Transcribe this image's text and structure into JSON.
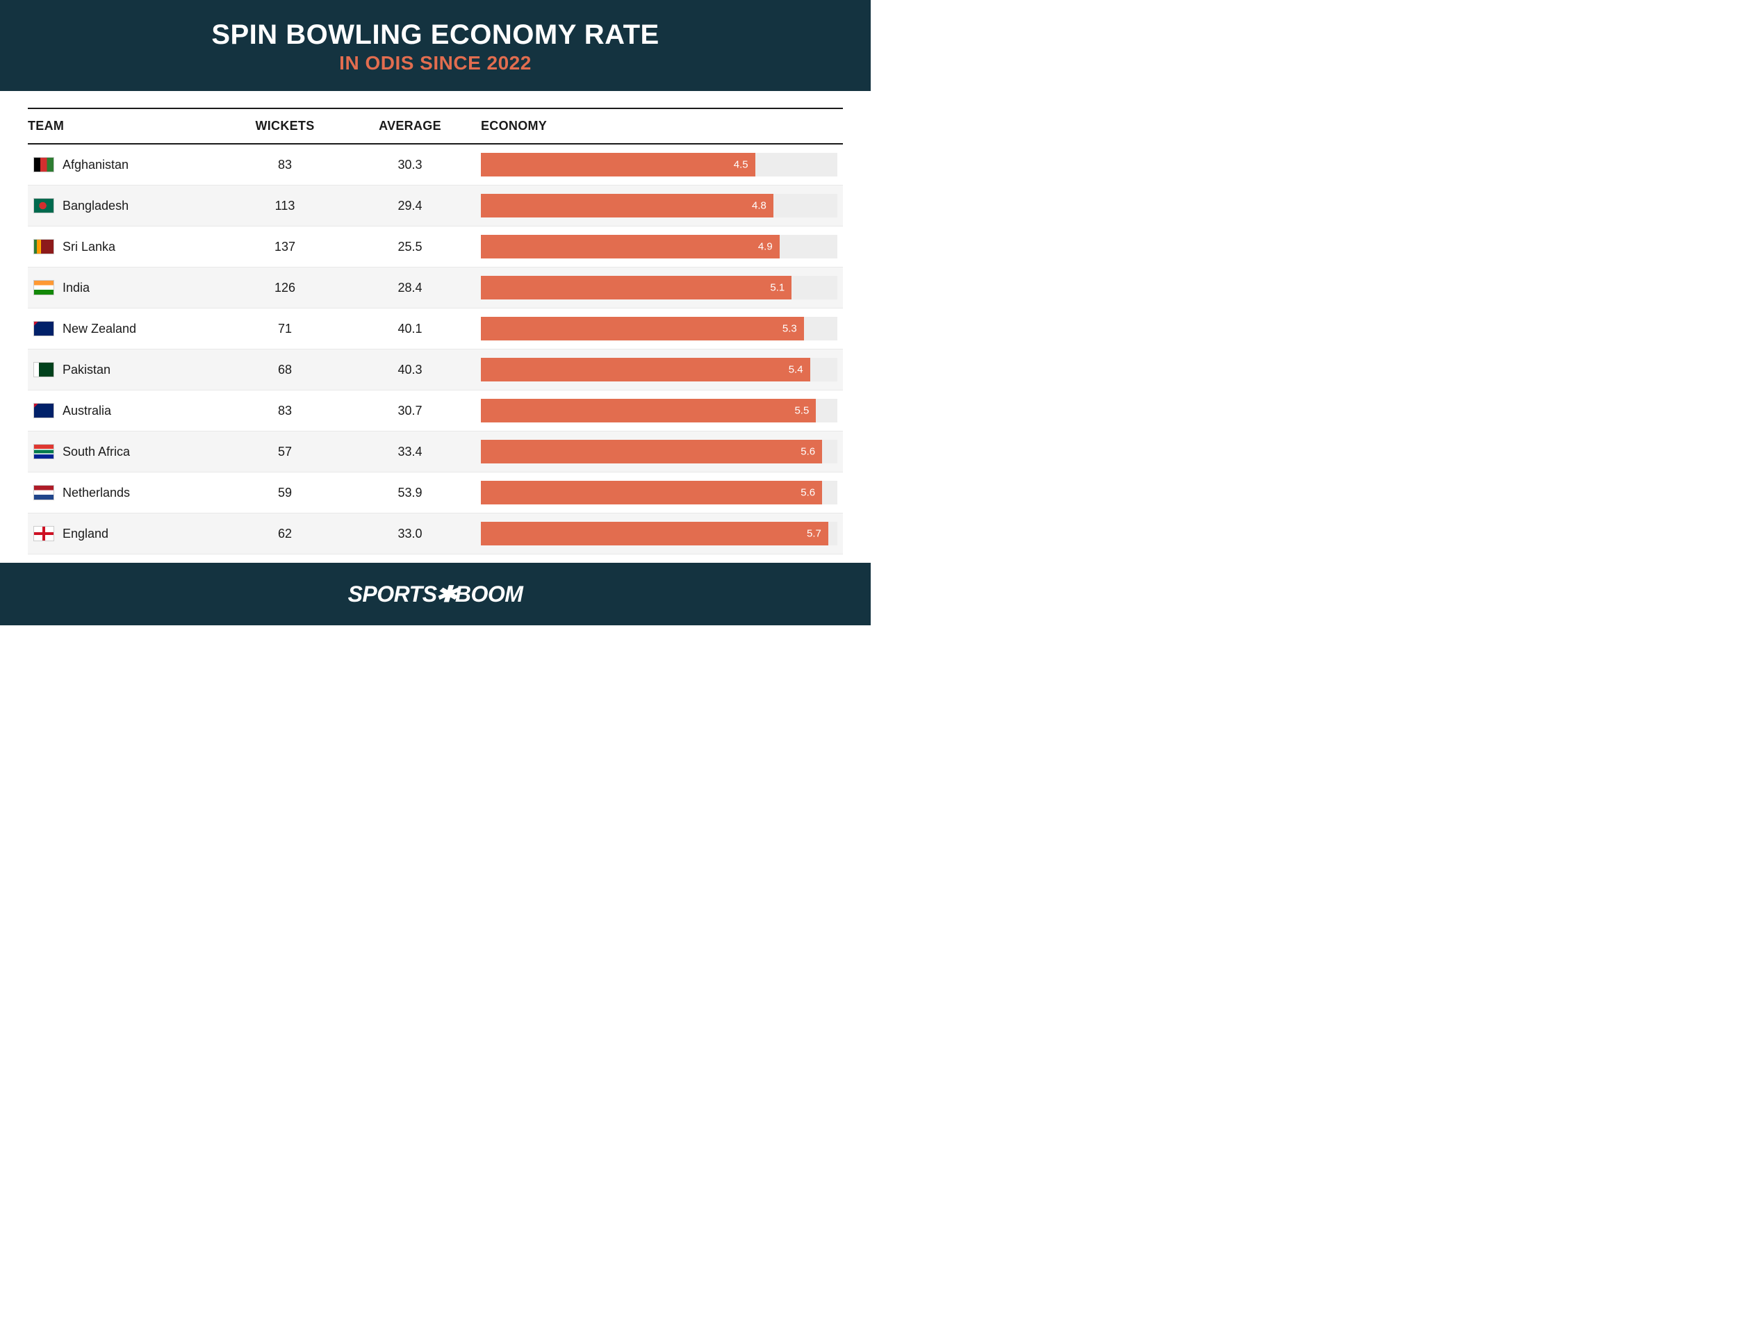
{
  "header": {
    "title": "SPIN BOWLING ECONOMY RATE",
    "subtitle": "IN ODIS SINCE 2022",
    "bg_color": "#143340",
    "title_color": "#ffffff",
    "subtitle_color": "#e26d4f",
    "title_fontsize": 40,
    "subtitle_fontsize": 28
  },
  "table": {
    "type": "table_with_bar",
    "columns": [
      "TEAM",
      "WICKETS",
      "AVERAGE",
      "ECONOMY"
    ],
    "bar_color": "#e26d4f",
    "bar_track_color": "#ededed",
    "bar_label_color": "#ffffff",
    "row_alt_bg": "#f5f5f5",
    "economy_max": 5.85,
    "border_color": "#1a1a1a",
    "row_border_color": "#e8e8e8",
    "header_fontsize": 18,
    "cell_fontsize": 18,
    "bar_label_fontsize": 15,
    "rows": [
      {
        "team": "Afghanistan",
        "wickets": 83,
        "average": "30.3",
        "economy": 4.5,
        "flag_css": "linear-gradient(to right, #000 0 33%, #d32f2f 33% 66%, #2e7d32 66% 100%)"
      },
      {
        "team": "Bangladesh",
        "wickets": 113,
        "average": "29.4",
        "economy": 4.8,
        "flag_css": "radial-gradient(circle at 45% 50%, #d32f2f 0 28%, #006a4e 29% 100%)"
      },
      {
        "team": "Sri Lanka",
        "wickets": 137,
        "average": "25.5",
        "economy": 4.9,
        "flag_css": "linear-gradient(to right, #2e7d32 0 15%, #ff9800 15% 30%, #ffb300 30% 35%, #8d1b1b 35% 100%)"
      },
      {
        "team": "India",
        "wickets": 126,
        "average": "28.4",
        "economy": 5.1,
        "flag_css": "linear-gradient(#ff9933 0 33%, #ffffff 33% 66%, #138808 66% 100%)"
      },
      {
        "team": "New Zealand",
        "wickets": 71,
        "average": "40.1",
        "economy": 5.3,
        "flag_css": "linear-gradient(135deg, #c8102e 0 12%, #012169 12% 100%)"
      },
      {
        "team": "Pakistan",
        "wickets": 68,
        "average": "40.3",
        "economy": 5.4,
        "flag_css": "linear-gradient(to right, #ffffff 0 25%, #01411c 25% 100%)"
      },
      {
        "team": "Australia",
        "wickets": 83,
        "average": "30.7",
        "economy": 5.5,
        "flag_css": "linear-gradient(135deg, #c8102e 0 12%, #012169 12% 100%)"
      },
      {
        "team": "South Africa",
        "wickets": 57,
        "average": "33.4",
        "economy": 5.6,
        "flag_css": "linear-gradient(#de3831 0 30%, #ffffff 30% 38%, #007a4d 38% 62%, #ffffff 62% 70%, #002395 70% 100%)"
      },
      {
        "team": "Netherlands",
        "wickets": 59,
        "average": "53.9",
        "economy": 5.6,
        "flag_css": "linear-gradient(#ae1c28 0 33%, #ffffff 33% 66%, #21468b 66% 100%)"
      },
      {
        "team": "England",
        "wickets": 62,
        "average": "33.0",
        "economy": 5.7,
        "flag_css": "linear-gradient(#fff,#fff)"
      }
    ]
  },
  "footer": {
    "logo_text_1": "SPORTS",
    "logo_text_2": "BOOM",
    "bg_color": "#143340",
    "logo_color": "#ffffff",
    "logo_fontsize": 32
  }
}
